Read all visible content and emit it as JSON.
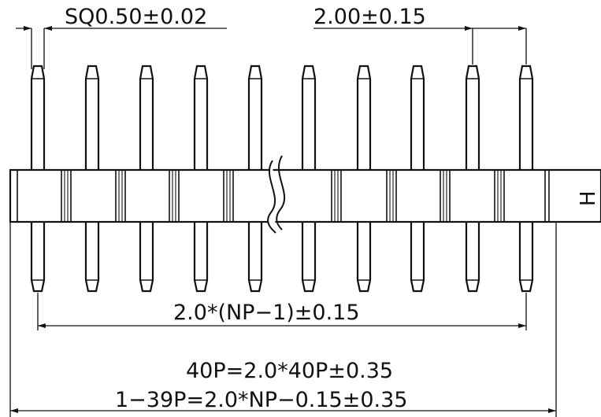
{
  "drawing": {
    "labels": {
      "pin_size": "SQ0.50±0.02",
      "pitch": "2.00±0.15",
      "height_mark": "H",
      "pin_span": "2.0*(NP−1)±0.15",
      "overall_40p": "40P=2.0*40P±0.35",
      "overall_1_39p": "1−39P=2.0*NP−0.15±0.35"
    },
    "pins_visible": 10,
    "pins_left_of_break": 5,
    "pins_right_of_break": 5
  }
}
